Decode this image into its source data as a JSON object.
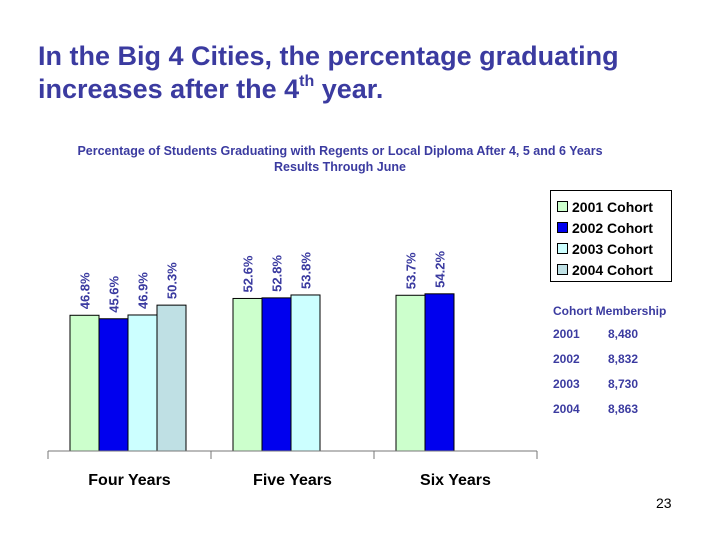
{
  "slide": {
    "title_main": "In the Big 4 Cities, the percentage graduating increases after the 4",
    "title_sup": "th",
    "title_end": " year.",
    "page_number": "23"
  },
  "chart_data": {
    "type": "bar",
    "title": "Percentage of Students Graduating with Regents or Local Diploma After 4, 5 and 6 Years",
    "subtitle": "Results Through June",
    "categories": [
      "Four Years",
      "Five Years",
      "Six Years"
    ],
    "series": [
      {
        "name": "2001 Cohort",
        "color": "#CCFFCC",
        "values": [
          46.8,
          52.6,
          53.7
        ],
        "labels": [
          "46.8%",
          "52.6%",
          "53.7%"
        ]
      },
      {
        "name": "2002 Cohort",
        "color": "#0000EE",
        "values": [
          45.6,
          52.8,
          54.2
        ],
        "labels": [
          "45.6%",
          "52.8%",
          "54.2%"
        ]
      },
      {
        "name": "2003 Cohort",
        "color": "#CCFFFF",
        "values": [
          46.9,
          53.8,
          null
        ],
        "labels": [
          "46.9%",
          "53.8%",
          ""
        ]
      },
      {
        "name": "2004 Cohort",
        "color": "#BFE0E4",
        "values": [
          50.3,
          null,
          null
        ],
        "labels": [
          "50.3%",
          "",
          ""
        ]
      }
    ],
    "ylim": [
      0,
      100
    ],
    "grid": false,
    "legend_position": "top-right"
  },
  "membership": {
    "title": "Cohort Membership",
    "rows": [
      {
        "year": "2001",
        "count": "8,480"
      },
      {
        "year": "2002",
        "count": "8,832"
      },
      {
        "year": "2003",
        "count": "8,730"
      },
      {
        "year": "2004",
        "count": "8,863"
      }
    ]
  }
}
